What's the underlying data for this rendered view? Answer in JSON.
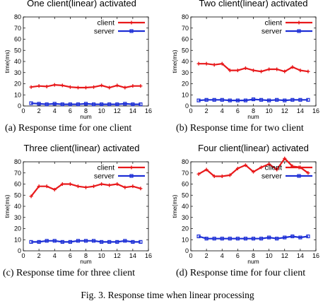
{
  "figure_caption": "Fig. 3.  Response time when linear processing",
  "colors": {
    "client": "#e8191b",
    "server": "#1d2fd6"
  },
  "chart_data": [
    {
      "type": "line",
      "title": "One client(linear) activated",
      "caption": "(a) Response time for one client",
      "xlabel": "num",
      "ylabel": "time(ms)",
      "xlim": [
        0,
        16
      ],
      "ylim": [
        0,
        80
      ],
      "xticks": [
        0,
        2,
        4,
        6,
        8,
        10,
        12,
        14,
        16
      ],
      "yticks": [
        0,
        10,
        20,
        30,
        40,
        50,
        60,
        70,
        80
      ],
      "legend_position": "top-right",
      "x": [
        1,
        2,
        3,
        4,
        5,
        6,
        7,
        8,
        9,
        10,
        11,
        12,
        13,
        14,
        15
      ],
      "series": [
        {
          "name": "client",
          "values": [
            17,
            18,
            17.5,
            19,
            18.5,
            17,
            16.5,
            16.5,
            17,
            18.5,
            16.5,
            18.5,
            16.5,
            18,
            18
          ]
        },
        {
          "name": "server",
          "values": [
            2.5,
            2,
            1.5,
            2,
            1.5,
            1.5,
            1.5,
            2,
            1.5,
            1.5,
            1.5,
            1.5,
            2,
            1.5,
            1.5
          ]
        }
      ]
    },
    {
      "type": "line",
      "title": "Two client(linear) activated",
      "caption": "(b) Response time for two client",
      "xlabel": "num",
      "ylabel": "time(ms)",
      "xlim": [
        0,
        16
      ],
      "ylim": [
        0,
        80
      ],
      "xticks": [
        0,
        2,
        4,
        6,
        8,
        10,
        12,
        14,
        16
      ],
      "yticks": [
        0,
        10,
        20,
        30,
        40,
        50,
        60,
        70,
        80
      ],
      "legend_position": "top-right",
      "x": [
        1,
        2,
        3,
        4,
        5,
        6,
        7,
        8,
        9,
        10,
        11,
        12,
        13,
        14,
        15
      ],
      "series": [
        {
          "name": "client",
          "values": [
            38,
            38,
            37,
            38,
            32,
            32,
            34,
            32,
            31,
            33,
            33,
            31,
            35,
            32,
            31
          ]
        },
        {
          "name": "server",
          "values": [
            5,
            5.5,
            5.5,
            5.5,
            5,
            5,
            5,
            6,
            5.5,
            5,
            5.5,
            5,
            5.5,
            5.5,
            5.5
          ]
        }
      ]
    },
    {
      "type": "line",
      "title": "Three client(linear) activated",
      "caption": "(c) Response time for three client",
      "xlabel": "num",
      "ylabel": "time(ms)",
      "xlim": [
        0,
        16
      ],
      "ylim": [
        0,
        80
      ],
      "xticks": [
        0,
        2,
        4,
        6,
        8,
        10,
        12,
        14,
        16
      ],
      "yticks": [
        0,
        10,
        20,
        30,
        40,
        50,
        60,
        70,
        80
      ],
      "legend_position": "top-right",
      "x": [
        1,
        2,
        3,
        4,
        5,
        6,
        7,
        8,
        9,
        10,
        11,
        12,
        13,
        14,
        15
      ],
      "series": [
        {
          "name": "client",
          "values": [
            49,
            58,
            58,
            55,
            60,
            60,
            58,
            57,
            58,
            60,
            59,
            60,
            57,
            58,
            56
          ]
        },
        {
          "name": "server",
          "values": [
            8,
            8,
            9,
            9,
            8,
            8,
            9,
            9,
            9,
            8,
            8,
            8,
            9,
            8,
            8
          ]
        }
      ]
    },
    {
      "type": "line",
      "title": "Four client(linear) activated",
      "caption": "(d) Response time for four client",
      "xlabel": "num",
      "ylabel": "time(ms)",
      "xlim": [
        0,
        16
      ],
      "ylim": [
        0,
        80
      ],
      "xticks": [
        0,
        2,
        4,
        6,
        8,
        10,
        12,
        14,
        16
      ],
      "yticks": [
        0,
        10,
        20,
        30,
        40,
        50,
        60,
        70,
        80
      ],
      "legend_position": "top-right",
      "x": [
        1,
        2,
        3,
        4,
        5,
        6,
        7,
        8,
        9,
        10,
        11,
        12,
        13,
        14,
        15
      ],
      "series": [
        {
          "name": "client",
          "values": [
            69,
            73,
            67,
            67,
            68,
            74,
            77,
            71,
            75,
            78,
            73,
            83,
            76,
            75,
            70
          ]
        },
        {
          "name": "server",
          "values": [
            13,
            11,
            11,
            11,
            11,
            11,
            11,
            11,
            11,
            12,
            11,
            12,
            13,
            12,
            13
          ]
        }
      ]
    }
  ]
}
